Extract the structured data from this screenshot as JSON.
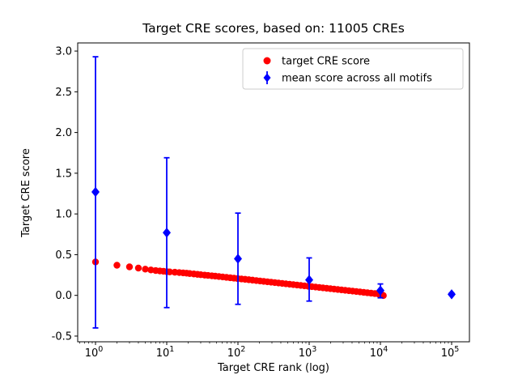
{
  "figure": {
    "title": "Target CRE scores, based on: 11005 CREs",
    "xlabel": "Target CRE rank (log)",
    "ylabel": "Target CRE score"
  },
  "chart_data": {
    "type": "scatter",
    "title": "Target CRE scores, based on: 11005 CREs",
    "xlabel": "Target CRE rank (log)",
    "ylabel": "Target CRE score",
    "x_scale": "log10",
    "xlim_log10": [
      -0.25,
      5.25
    ],
    "ylim": [
      -0.57,
      3.1
    ],
    "y_ticks": [
      -0.5,
      0.0,
      0.5,
      1.0,
      1.5,
      2.0,
      2.5,
      3.0
    ],
    "x_tick_exponents": [
      0,
      1,
      2,
      3,
      4,
      5
    ],
    "grid": false,
    "legend_position": "upper right",
    "legend_entries": [
      "target CRE score",
      "mean score across all motifs"
    ],
    "total_points": 11005,
    "series": [
      {
        "name": "target CRE score",
        "marker": "circle",
        "color": "#ff0000",
        "points": [
          [
            1,
            0.41
          ],
          [
            2,
            0.37
          ],
          [
            3,
            0.35
          ],
          [
            4,
            0.335
          ],
          [
            5,
            0.322
          ],
          [
            6,
            0.312
          ],
          [
            7,
            0.305
          ],
          [
            8,
            0.3
          ],
          [
            9,
            0.296
          ],
          [
            10,
            0.291
          ],
          [
            11,
            0.288
          ],
          [
            13,
            0.284
          ],
          [
            15,
            0.28
          ],
          [
            17,
            0.276
          ],
          [
            19,
            0.272
          ],
          [
            21,
            0.268
          ],
          [
            24,
            0.263
          ],
          [
            27,
            0.258
          ],
          [
            30,
            0.254
          ],
          [
            34,
            0.249
          ],
          [
            38,
            0.245
          ],
          [
            43,
            0.24
          ],
          [
            48,
            0.236
          ],
          [
            54,
            0.231
          ],
          [
            61,
            0.226
          ],
          [
            69,
            0.221
          ],
          [
            78,
            0.216
          ],
          [
            88,
            0.211
          ],
          [
            99,
            0.206
          ],
          [
            112,
            0.201
          ],
          [
            126,
            0.197
          ],
          [
            142,
            0.192
          ],
          [
            160,
            0.187
          ],
          [
            181,
            0.182
          ],
          [
            204,
            0.177
          ],
          [
            230,
            0.172
          ],
          [
            259,
            0.167
          ],
          [
            292,
            0.162
          ],
          [
            329,
            0.157
          ],
          [
            371,
            0.152
          ],
          [
            418,
            0.147
          ],
          [
            471,
            0.142
          ],
          [
            531,
            0.137
          ],
          [
            599,
            0.132
          ],
          [
            675,
            0.127
          ],
          [
            761,
            0.122
          ],
          [
            858,
            0.117
          ],
          [
            967,
            0.112
          ],
          [
            1090,
            0.107
          ],
          [
            1229,
            0.102
          ],
          [
            1385,
            0.097
          ],
          [
            1561,
            0.092
          ],
          [
            1760,
            0.087
          ],
          [
            1984,
            0.082
          ],
          [
            2236,
            0.077
          ],
          [
            2521,
            0.072
          ],
          [
            2842,
            0.067
          ],
          [
            3203,
            0.062
          ],
          [
            3611,
            0.057
          ],
          [
            4071,
            0.052
          ],
          [
            4589,
            0.047
          ],
          [
            5173,
            0.042
          ],
          [
            5831,
            0.037
          ],
          [
            6573,
            0.032
          ],
          [
            7410,
            0.027
          ],
          [
            8353,
            0.022
          ],
          [
            9416,
            0.016
          ],
          [
            10300,
            0.01
          ],
          [
            10700,
            0.004
          ],
          [
            11005,
            -0.002
          ]
        ]
      },
      {
        "name": "mean score across all motifs",
        "marker": "diamond",
        "color": "#0000ff",
        "x": [
          1,
          10,
          100,
          1000,
          10000,
          100000
        ],
        "y": [
          1.27,
          0.77,
          0.45,
          0.19,
          0.06,
          0.013
        ],
        "error_low": [
          -0.4,
          -0.15,
          -0.11,
          -0.07,
          -0.03,
          0.0
        ],
        "error_high": [
          2.93,
          1.69,
          1.01,
          0.46,
          0.14,
          0.03
        ]
      }
    ]
  }
}
